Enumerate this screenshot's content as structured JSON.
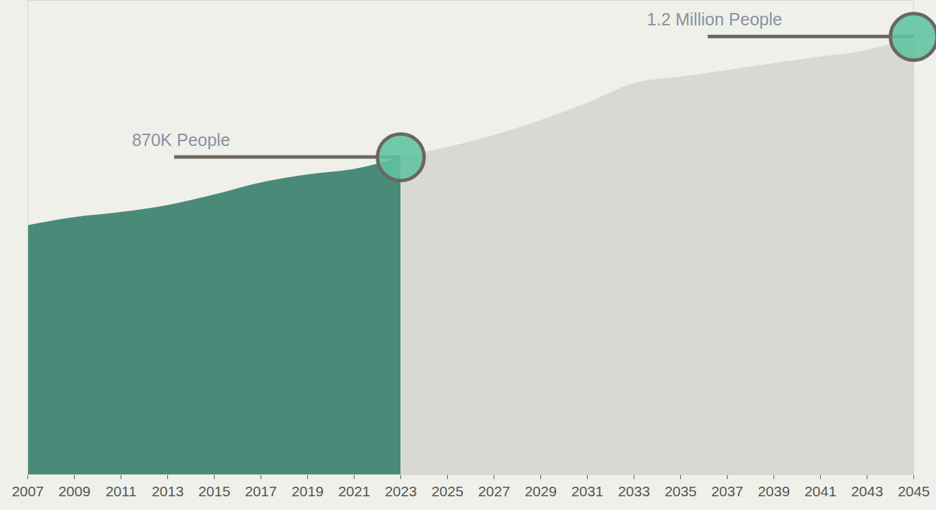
{
  "chart_data": {
    "type": "area",
    "x": [
      2007,
      2009,
      2011,
      2013,
      2015,
      2017,
      2019,
      2021,
      2023,
      2025,
      2027,
      2029,
      2031,
      2033,
      2035,
      2037,
      2039,
      2041,
      2043,
      2045
    ],
    "series": [
      {
        "color": "#4a8a78",
        "values": [
          683000,
          705000,
          719000,
          738000,
          767000,
          800000,
          822000,
          837000,
          870000,
          null,
          null,
          null,
          null,
          null,
          null,
          null,
          null,
          null,
          null,
          null
        ]
      },
      {
        "color": "#d9d9d3",
        "values": [
          null,
          null,
          null,
          null,
          null,
          null,
          null,
          null,
          870000,
          897000,
          930000,
          971000,
          1018000,
          1072000,
          1090000,
          1108000,
          1127000,
          1145000,
          1163000,
          1200000
        ]
      }
    ],
    "xlim": [
      2007,
      2045
    ],
    "xticks": [
      2007,
      2009,
      2011,
      2013,
      2015,
      2017,
      2019,
      2021,
      2023,
      2025,
      2027,
      2029,
      2031,
      2033,
      2035,
      2037,
      2039,
      2041,
      2043,
      2045
    ],
    "ylim": [
      0,
      1300000
    ],
    "tick_labels": "x",
    "annotations": [
      {
        "text": "870K People",
        "x": 2023,
        "value": 870000
      },
      {
        "text": "1.2 Million People",
        "x": 2045,
        "value": 1200000
      }
    ]
  }
}
